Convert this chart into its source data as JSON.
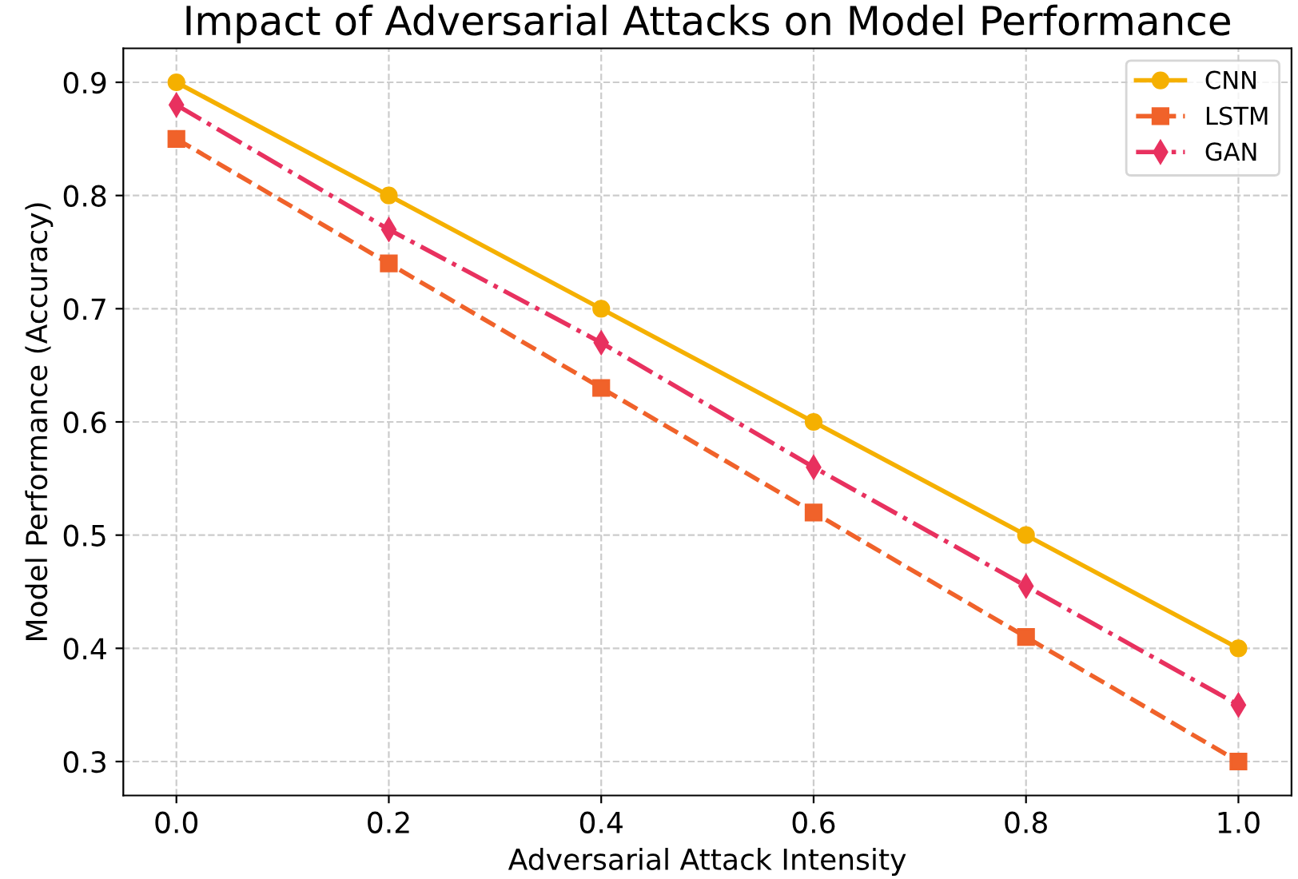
{
  "chart_data": {
    "type": "line",
    "title": "Impact of Adversarial Attacks on Model Performance",
    "xlabel": "Adversarial Attack Intensity",
    "ylabel": "Model Performance (Accuracy)",
    "x": [
      0.0,
      0.2,
      0.4,
      0.6,
      0.8,
      1.0
    ],
    "series": [
      {
        "name": "CNN",
        "color": "#f5b000",
        "marker": "circle",
        "line_style": "solid",
        "values": [
          0.9,
          0.8,
          0.7,
          0.6,
          0.5,
          0.4
        ]
      },
      {
        "name": "LSTM",
        "color": "#f0622a",
        "marker": "square",
        "line_style": "dashed",
        "values": [
          0.85,
          0.74,
          0.63,
          0.52,
          0.41,
          0.3
        ]
      },
      {
        "name": "GAN",
        "color": "#e8315f",
        "marker": "diamond",
        "line_style": "dashdot",
        "values": [
          0.88,
          0.77,
          0.67,
          0.56,
          0.455,
          0.35
        ]
      }
    ],
    "xlim": [
      -0.05,
      1.05
    ],
    "ylim": [
      0.27,
      0.93
    ],
    "xticks": [
      {
        "value": 0.0,
        "label": "0.0"
      },
      0.2,
      0.4,
      0.6,
      0.8,
      {
        "value": 1.0,
        "label": "1.0"
      }
    ],
    "yticks": [
      0.3,
      0.4,
      0.5,
      0.6,
      0.7,
      0.8,
      0.9
    ],
    "grid": true,
    "legend": "top right"
  }
}
